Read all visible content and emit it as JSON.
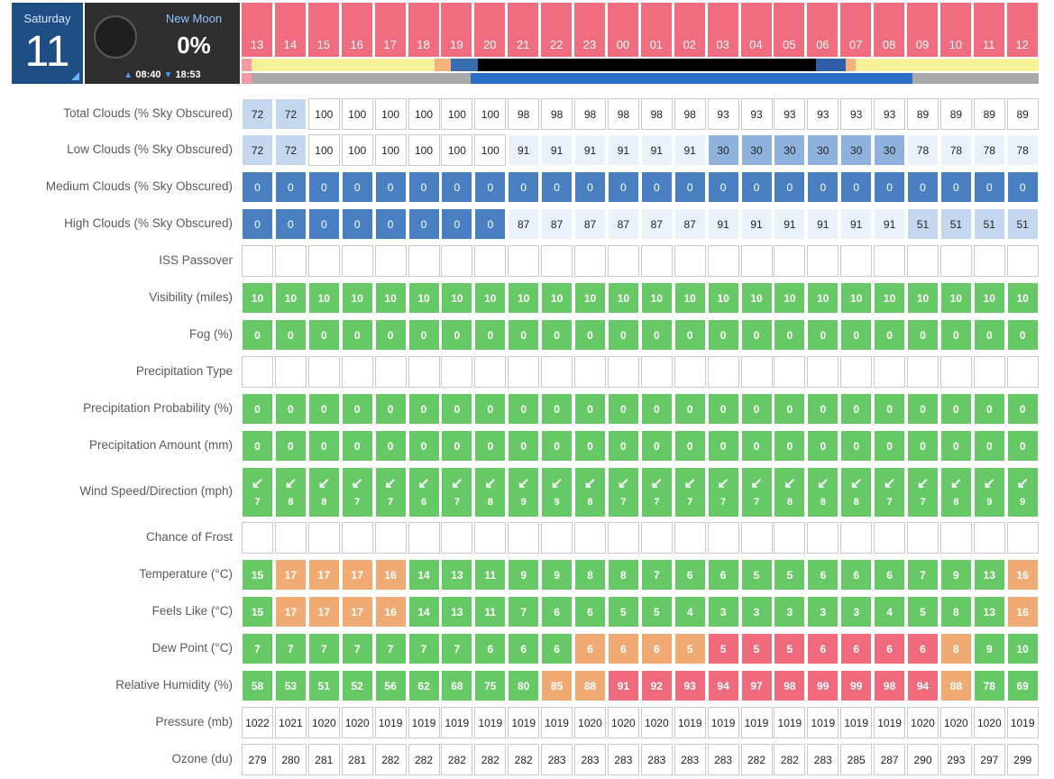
{
  "date": {
    "weekday": "Saturday",
    "day": "11"
  },
  "moon": {
    "phase": "New Moon",
    "illumination": "0%",
    "rise": "08:40",
    "set": "18:53"
  },
  "hours": [
    "13",
    "14",
    "15",
    "16",
    "17",
    "18",
    "19",
    "20",
    "21",
    "22",
    "23",
    "00",
    "01",
    "02",
    "03",
    "04",
    "05",
    "06",
    "07",
    "08",
    "09",
    "10",
    "11",
    "12"
  ],
  "daylight_bar": [
    {
      "color": "#f59aa6",
      "weight": 0.3
    },
    {
      "color": "#f7f29a",
      "weight": 5.5
    },
    {
      "color": "#f3b27a",
      "weight": 0.5
    },
    {
      "color": "#3a6cb0",
      "weight": 0.8
    },
    {
      "color": "#000000",
      "weight": 10.2
    },
    {
      "color": "#2f5fa8",
      "weight": 0.9
    },
    {
      "color": "#f3b27a",
      "weight": 0.3
    },
    {
      "color": "#f7f29a",
      "weight": 5.5
    }
  ],
  "moon_bar": [
    {
      "color": "#f59aa6",
      "weight": 0.3
    },
    {
      "color": "#a9a9a9",
      "weight": 6.6
    },
    {
      "color": "#2a6fc4",
      "weight": 13.3
    },
    {
      "color": "#a9a9a9",
      "weight": 3.8
    }
  ],
  "rows": [
    {
      "label": "Total Clouds (% Sky Obscured)",
      "values": [
        "72",
        "72",
        "100",
        "100",
        "100",
        "100",
        "100",
        "100",
        "98",
        "98",
        "98",
        "98",
        "98",
        "98",
        "93",
        "93",
        "93",
        "93",
        "93",
        "93",
        "89",
        "89",
        "89",
        "89"
      ],
      "styles": [
        "blue-light",
        "blue-light",
        "",
        "",
        "",
        "",
        "",
        "",
        "",
        "",
        "",
        "",
        "",
        "",
        "",
        "",
        "",
        "",
        "",
        "",
        "",
        "",
        "",
        ""
      ]
    },
    {
      "label": "Low Clouds (% Sky Obscured)",
      "values": [
        "72",
        "72",
        "100",
        "100",
        "100",
        "100",
        "100",
        "100",
        "91",
        "91",
        "91",
        "91",
        "91",
        "91",
        "30",
        "30",
        "30",
        "30",
        "30",
        "30",
        "78",
        "78",
        "78",
        "78"
      ],
      "styles": [
        "blue-light",
        "blue-light",
        "",
        "",
        "",
        "",
        "",
        "",
        "pale",
        "pale",
        "pale",
        "pale",
        "pale",
        "pale",
        "blue-mid",
        "blue-mid",
        "blue-mid",
        "blue-mid",
        "blue-mid",
        "blue-mid",
        "pale",
        "pale",
        "pale",
        "pale"
      ]
    },
    {
      "label": "Medium Clouds (% Sky Obscured)",
      "values": [
        "0",
        "0",
        "0",
        "0",
        "0",
        "0",
        "0",
        "0",
        "0",
        "0",
        "0",
        "0",
        "0",
        "0",
        "0",
        "0",
        "0",
        "0",
        "0",
        "0",
        "0",
        "0",
        "0",
        "0"
      ],
      "styles": [
        "blue-dark",
        "blue-dark",
        "blue-dark",
        "blue-dark",
        "blue-dark",
        "blue-dark",
        "blue-dark",
        "blue-dark",
        "blue-dark",
        "blue-dark",
        "blue-dark",
        "blue-dark",
        "blue-dark",
        "blue-dark",
        "blue-dark",
        "blue-dark",
        "blue-dark",
        "blue-dark",
        "blue-dark",
        "blue-dark",
        "blue-dark",
        "blue-dark",
        "blue-dark",
        "blue-dark"
      ]
    },
    {
      "label": "High Clouds (% Sky Obscured)",
      "values": [
        "0",
        "0",
        "0",
        "0",
        "0",
        "0",
        "0",
        "0",
        "87",
        "87",
        "87",
        "87",
        "87",
        "87",
        "91",
        "91",
        "91",
        "91",
        "91",
        "91",
        "51",
        "51",
        "51",
        "51"
      ],
      "styles": [
        "blue-dark",
        "blue-dark",
        "blue-dark",
        "blue-dark",
        "blue-dark",
        "blue-dark",
        "blue-dark",
        "blue-dark",
        "pale",
        "pale",
        "pale",
        "pale",
        "pale",
        "pale",
        "pale",
        "pale",
        "pale",
        "pale",
        "pale",
        "pale",
        "blue-light",
        "blue-light",
        "blue-light",
        "blue-light"
      ]
    },
    {
      "label": "ISS Passover",
      "values": [
        "",
        "",
        "",
        "",
        "",
        "",
        "",
        "",
        "",
        "",
        "",
        "",
        "",
        "",
        "",
        "",
        "",
        "",
        "",
        "",
        "",
        "",
        "",
        ""
      ],
      "styles": [
        "",
        "",
        "",
        "",
        "",
        "",
        "",
        "",
        "",
        "",
        "",
        "",
        "",
        "",
        "",
        "",
        "",
        "",
        "",
        "",
        "",
        "",
        "",
        ""
      ]
    },
    {
      "label": "Visibility (miles)",
      "values": [
        "10",
        "10",
        "10",
        "10",
        "10",
        "10",
        "10",
        "10",
        "10",
        "10",
        "10",
        "10",
        "10",
        "10",
        "10",
        "10",
        "10",
        "10",
        "10",
        "10",
        "10",
        "10",
        "10",
        "10"
      ],
      "styles": [
        "green",
        "green",
        "green",
        "green",
        "green",
        "green",
        "green",
        "green",
        "green",
        "green",
        "green",
        "green",
        "green",
        "green",
        "green",
        "green",
        "green",
        "green",
        "green",
        "green",
        "green",
        "green",
        "green",
        "green"
      ]
    },
    {
      "label": "Fog (%)",
      "values": [
        "0",
        "0",
        "0",
        "0",
        "0",
        "0",
        "0",
        "0",
        "0",
        "0",
        "0",
        "0",
        "0",
        "0",
        "0",
        "0",
        "0",
        "0",
        "0",
        "0",
        "0",
        "0",
        "0",
        "0"
      ],
      "styles": [
        "green",
        "green",
        "green",
        "green",
        "green",
        "green",
        "green",
        "green",
        "green",
        "green",
        "green",
        "green",
        "green",
        "green",
        "green",
        "green",
        "green",
        "green",
        "green",
        "green",
        "green",
        "green",
        "green",
        "green"
      ]
    },
    {
      "label": "Precipitation Type",
      "values": [
        "",
        "",
        "",
        "",
        "",
        "",
        "",
        "",
        "",
        "",
        "",
        "",
        "",
        "",
        "",
        "",
        "",
        "",
        "",
        "",
        "",
        "",
        "",
        ""
      ],
      "styles": [
        "",
        "",
        "",
        "",
        "",
        "",
        "",
        "",
        "",
        "",
        "",
        "",
        "",
        "",
        "",
        "",
        "",
        "",
        "",
        "",
        "",
        "",
        "",
        ""
      ]
    },
    {
      "label": "Precipitation Probability (%)",
      "values": [
        "0",
        "0",
        "0",
        "0",
        "0",
        "0",
        "0",
        "0",
        "0",
        "0",
        "0",
        "0",
        "0",
        "0",
        "0",
        "0",
        "0",
        "0",
        "0",
        "0",
        "0",
        "0",
        "0",
        "0"
      ],
      "styles": [
        "green",
        "green",
        "green",
        "green",
        "green",
        "green",
        "green",
        "green",
        "green",
        "green",
        "green",
        "green",
        "green",
        "green",
        "green",
        "green",
        "green",
        "green",
        "green",
        "green",
        "green",
        "green",
        "green",
        "green"
      ]
    },
    {
      "label": "Precipitation Amount (mm)",
      "values": [
        "0",
        "0",
        "0",
        "0",
        "0",
        "0",
        "0",
        "0",
        "0",
        "0",
        "0",
        "0",
        "0",
        "0",
        "0",
        "0",
        "0",
        "0",
        "0",
        "0",
        "0",
        "0",
        "0",
        "0"
      ],
      "styles": [
        "green",
        "green",
        "green",
        "green",
        "green",
        "green",
        "green",
        "green",
        "green",
        "green",
        "green",
        "green",
        "green",
        "green",
        "green",
        "green",
        "green",
        "green",
        "green",
        "green",
        "green",
        "green",
        "green",
        "green"
      ]
    },
    {
      "label": "Wind Speed/Direction (mph)",
      "type": "wind",
      "values": [
        "7",
        "8",
        "8",
        "7",
        "7",
        "6",
        "7",
        "8",
        "9",
        "9",
        "8",
        "7",
        "7",
        "7",
        "7",
        "7",
        "8",
        "8",
        "8",
        "7",
        "7",
        "8",
        "9",
        "9"
      ],
      "arrows": [
        "↙",
        "↙",
        "↙",
        "↙",
        "↙",
        "↙",
        "↙",
        "↙",
        "↙",
        "↙",
        "↙",
        "↙",
        "↙",
        "↙",
        "↙",
        "↙",
        "↙",
        "↙",
        "↙",
        "↙",
        "↙",
        "↙",
        "↙",
        "↙"
      ],
      "styles": [
        "green",
        "green",
        "green",
        "green",
        "green",
        "green",
        "green",
        "green",
        "green",
        "green",
        "green",
        "green",
        "green",
        "green",
        "green",
        "green",
        "green",
        "green",
        "green",
        "green",
        "green",
        "green",
        "green",
        "green"
      ]
    },
    {
      "label": "Chance of Frost",
      "values": [
        "",
        "",
        "",
        "",
        "",
        "",
        "",
        "",
        "",
        "",
        "",
        "",
        "",
        "",
        "",
        "",
        "",
        "",
        "",
        "",
        "",
        "",
        "",
        ""
      ],
      "styles": [
        "",
        "",
        "",
        "",
        "",
        "",
        "",
        "",
        "",
        "",
        "",
        "",
        "",
        "",
        "",
        "",
        "",
        "",
        "",
        "",
        "",
        "",
        "",
        ""
      ]
    },
    {
      "label": "Temperature (°C)",
      "values": [
        "15",
        "17",
        "17",
        "17",
        "16",
        "14",
        "13",
        "11",
        "9",
        "9",
        "8",
        "8",
        "7",
        "6",
        "6",
        "5",
        "5",
        "6",
        "6",
        "6",
        "7",
        "9",
        "13",
        "16"
      ],
      "styles": [
        "green",
        "orange",
        "orange",
        "orange",
        "orange",
        "green",
        "green",
        "green",
        "green",
        "green",
        "green",
        "green",
        "green",
        "green",
        "green",
        "green",
        "green",
        "green",
        "green",
        "green",
        "green",
        "green",
        "green",
        "orange"
      ]
    },
    {
      "label": "Feels Like (°C)",
      "values": [
        "15",
        "17",
        "17",
        "17",
        "16",
        "14",
        "13",
        "11",
        "7",
        "6",
        "6",
        "5",
        "5",
        "4",
        "3",
        "3",
        "3",
        "3",
        "3",
        "4",
        "5",
        "8",
        "13",
        "16"
      ],
      "styles": [
        "green",
        "orange",
        "orange",
        "orange",
        "orange",
        "green",
        "green",
        "green",
        "green",
        "green",
        "green",
        "green",
        "green",
        "green",
        "green",
        "green",
        "green",
        "green",
        "green",
        "green",
        "green",
        "green",
        "green",
        "orange"
      ]
    },
    {
      "label": "Dew Point (°C)",
      "values": [
        "7",
        "7",
        "7",
        "7",
        "7",
        "7",
        "7",
        "6",
        "6",
        "6",
        "6",
        "6",
        "6",
        "5",
        "5",
        "5",
        "5",
        "6",
        "6",
        "6",
        "6",
        "8",
        "9",
        "10"
      ],
      "styles": [
        "green",
        "green",
        "green",
        "green",
        "green",
        "green",
        "green",
        "green",
        "green",
        "green",
        "orange",
        "orange",
        "orange",
        "orange",
        "red",
        "red",
        "red",
        "red",
        "red",
        "red",
        "red",
        "orange",
        "green",
        "green"
      ]
    },
    {
      "label": "Relative Humidity (%)",
      "values": [
        "58",
        "53",
        "51",
        "52",
        "56",
        "62",
        "68",
        "75",
        "80",
        "85",
        "88",
        "91",
        "92",
        "93",
        "94",
        "97",
        "98",
        "99",
        "99",
        "98",
        "94",
        "88",
        "78",
        "69"
      ],
      "styles": [
        "green",
        "green",
        "green",
        "green",
        "green",
        "green",
        "green",
        "green",
        "green",
        "orange",
        "orange",
        "red",
        "red",
        "red",
        "red",
        "red",
        "red",
        "red",
        "red",
        "red",
        "red",
        "orange",
        "green",
        "green"
      ]
    },
    {
      "label": "Pressure (mb)",
      "values": [
        "1022",
        "1021",
        "1020",
        "1020",
        "1019",
        "1019",
        "1019",
        "1019",
        "1019",
        "1019",
        "1020",
        "1020",
        "1020",
        "1019",
        "1019",
        "1019",
        "1019",
        "1019",
        "1019",
        "1019",
        "1020",
        "1020",
        "1020",
        "1019"
      ],
      "styles": [
        "",
        "",
        "",
        "",
        "",
        "",
        "",
        "",
        "",
        "",
        "",
        "",
        "",
        "",
        "",
        "",
        "",
        "",
        "",
        "",
        "",
        "",
        "",
        ""
      ]
    },
    {
      "label": "Ozone (du)",
      "values": [
        "279",
        "280",
        "281",
        "281",
        "282",
        "282",
        "282",
        "282",
        "282",
        "283",
        "283",
        "283",
        "283",
        "283",
        "283",
        "282",
        "282",
        "283",
        "285",
        "287",
        "290",
        "293",
        "297",
        "299"
      ],
      "styles": [
        "",
        "",
        "",
        "",
        "",
        "",
        "",
        "",
        "",
        "",
        "",
        "",
        "",
        "",
        "",
        "",
        "",
        "",
        "",
        "",
        "",
        "",
        "",
        ""
      ]
    }
  ]
}
